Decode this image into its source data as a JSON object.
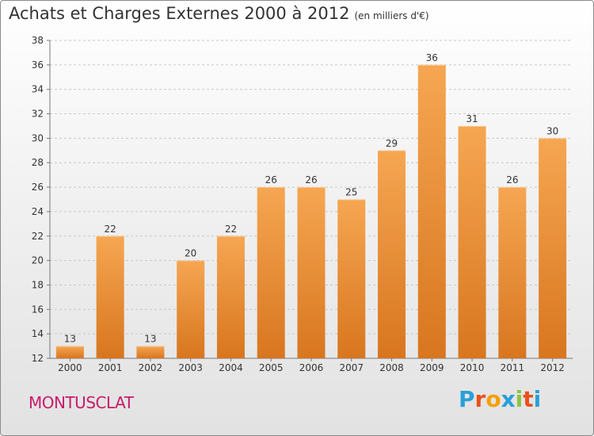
{
  "title": "Achats et Charges Externes 2000 à 2012",
  "unit_note": "(en milliers d'€)",
  "commune": "MONTUSCLAT",
  "logo": {
    "letters": [
      "P",
      "r",
      "o",
      "x",
      "i",
      "t",
      "i"
    ],
    "colors": [
      "#2a9fd8",
      "#e8501e",
      "#f5a000",
      "#2a9fd8",
      "#8cc540",
      "#e8501e",
      "#2a9fd8"
    ]
  },
  "colors": {
    "bar_light": "#f6a652",
    "bar_dark": "#d8761f",
    "title": "#333333",
    "commune": "#c71b6b"
  },
  "chart_data": {
    "type": "bar",
    "title": "Achats et Charges Externes 2000 à 2012",
    "subtitle": "(en milliers d'€)",
    "categories": [
      "2000",
      "2001",
      "2002",
      "2003",
      "2004",
      "2005",
      "2006",
      "2007",
      "2008",
      "2009",
      "2010",
      "2011",
      "2012"
    ],
    "values": [
      13,
      22,
      13,
      20,
      22,
      26,
      26,
      25,
      29,
      36,
      31,
      26,
      30
    ],
    "ylim": [
      12,
      38
    ],
    "yticks": [
      12,
      14,
      16,
      18,
      20,
      22,
      24,
      26,
      28,
      30,
      32,
      34,
      36,
      38
    ],
    "grid": "horizontal, dashed",
    "data_labels": true
  }
}
